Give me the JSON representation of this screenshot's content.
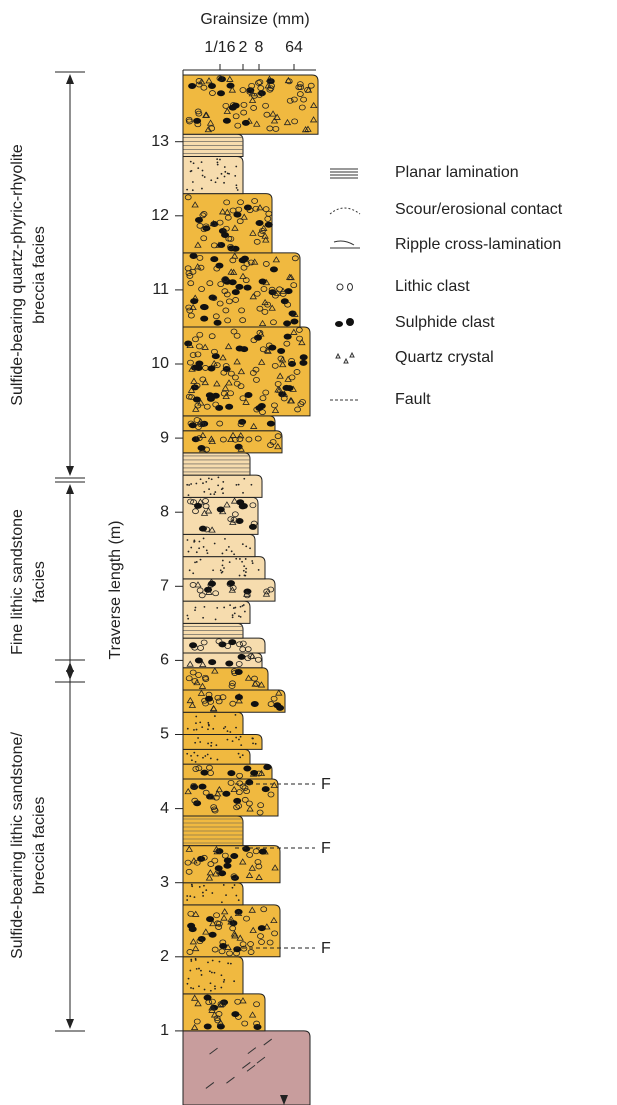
{
  "grainsize_axis": {
    "title": "Grainsize (mm)",
    "ticks": [
      "1/16",
      "2",
      "8",
      "64"
    ]
  },
  "length_axis": {
    "title": "Traverse length (m)",
    "ticks": [
      1,
      2,
      3,
      4,
      5,
      6,
      7,
      8,
      9,
      10,
      11,
      12,
      13
    ]
  },
  "facies": [
    {
      "lines": [
        "Sulfide-bearing quartz-phyric-rhyolite",
        "breccia facies"
      ]
    },
    {
      "lines": [
        "Fine lithic sandstone",
        "facies"
      ]
    },
    {
      "lines": [
        "Sulfide-bearing lithic sandstone/",
        "breccia facies"
      ]
    }
  ],
  "legend": [
    "Planar lamination",
    "Scour/erosional contact",
    "Ripple cross-lamination",
    "Lithic clast",
    "Sulphide clast",
    "Quartz crystal",
    "Fault"
  ],
  "fault_labels": [
    "F",
    "F",
    "F"
  ]
}
